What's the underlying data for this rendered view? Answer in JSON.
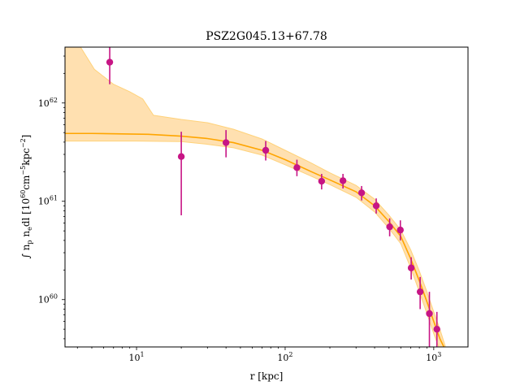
{
  "chart_data": {
    "type": "scatter",
    "title": "PSZ2G045.13+67.78",
    "xlabel": "r [kpc]",
    "ylabel": {
      "prefix": "∫ n",
      "sub1": "p",
      "mid": " n",
      "sub2": "e",
      "dl": "dl [10",
      "exp1": "60",
      "cm": "cm",
      "exp2": "−5",
      "kpc": "kpc",
      "exp3": "−2",
      "end": "]"
    },
    "xscale": "log",
    "yscale": "log",
    "xlim": [
      3.3,
      1700
    ],
    "ylim": [
      3.3e+59,
      3.7e+62
    ],
    "xticks": [
      {
        "value": 10,
        "base": "10",
        "exp": "1"
      },
      {
        "value": 100,
        "base": "10",
        "exp": "2"
      },
      {
        "value": 1000,
        "base": "10",
        "exp": "3"
      }
    ],
    "yticks": [
      {
        "value": 1e+60,
        "base": "10",
        "exp": "60"
      },
      {
        "value": 1e+61,
        "base": "10",
        "exp": "61"
      },
      {
        "value": 1e+62,
        "base": "10",
        "exp": "62"
      }
    ],
    "colors": {
      "data": "#c71585",
      "model": "#ffa500",
      "band": "#ffe0b0",
      "band_edge": "#ffd27a"
    },
    "points": [
      {
        "x": 6.6,
        "y": 2.6e+62,
        "ylo": 1.55e+62,
        "yhi": 3.7e+62
      },
      {
        "x": 20,
        "y": 2.85e+61,
        "ylo": 7.2e+60,
        "yhi": 5.1e+61
      },
      {
        "x": 40,
        "y": 3.95e+61,
        "ylo": 2.8e+61,
        "yhi": 5.3e+61
      },
      {
        "x": 74,
        "y": 3.3e+61,
        "ylo": 2.6e+61,
        "yhi": 4.1e+61
      },
      {
        "x": 120,
        "y": 2.2e+61,
        "ylo": 1.8e+61,
        "yhi": 2.65e+61
      },
      {
        "x": 176,
        "y": 1.6e+61,
        "ylo": 1.32e+61,
        "yhi": 1.9e+61
      },
      {
        "x": 245,
        "y": 1.62e+61,
        "ylo": 1.35e+61,
        "yhi": 1.9e+61
      },
      {
        "x": 327,
        "y": 1.22e+61,
        "ylo": 1.02e+61,
        "yhi": 1.43e+61
      },
      {
        "x": 410,
        "y": 9e+60,
        "ylo": 7.5e+60,
        "yhi": 1.07e+61
      },
      {
        "x": 505,
        "y": 5.5e+60,
        "ylo": 4.4e+60,
        "yhi": 6.7e+60
      },
      {
        "x": 596,
        "y": 5.1e+60,
        "ylo": 4e+60,
        "yhi": 6.4e+60
      },
      {
        "x": 705,
        "y": 2.1e+60,
        "ylo": 1.6e+60,
        "yhi": 2.7e+60
      },
      {
        "x": 810,
        "y": 1.2e+60,
        "ylo": 8e+59,
        "yhi": 1.7e+60
      },
      {
        "x": 935,
        "y": 7.2e+59,
        "ylo": 3.3e+59,
        "yhi": 1.2e+60
      },
      {
        "x": 1050,
        "y": 5e+59,
        "ylo": 3.3e+59,
        "yhi": 7.5e+59
      }
    ],
    "model_curve": [
      {
        "x": 3.3,
        "y": 4.9e+61
      },
      {
        "x": 5,
        "y": 4.9e+61
      },
      {
        "x": 8,
        "y": 4.85e+61
      },
      {
        "x": 12,
        "y": 4.8e+61
      },
      {
        "x": 20,
        "y": 4.6e+61
      },
      {
        "x": 30,
        "y": 4.35e+61
      },
      {
        "x": 45,
        "y": 3.95e+61
      },
      {
        "x": 70,
        "y": 3.3e+61
      },
      {
        "x": 100,
        "y": 2.65e+61
      },
      {
        "x": 150,
        "y": 2e+61
      },
      {
        "x": 200,
        "y": 1.65e+61
      },
      {
        "x": 300,
        "y": 1.25e+61
      },
      {
        "x": 400,
        "y": 9e+60
      },
      {
        "x": 500,
        "y": 6.2e+60
      },
      {
        "x": 600,
        "y": 4.4e+60
      },
      {
        "x": 700,
        "y": 2.6e+60
      },
      {
        "x": 800,
        "y": 1.55e+60
      },
      {
        "x": 900,
        "y": 9.5e+59
      },
      {
        "x": 1000,
        "y": 6e+59
      },
      {
        "x": 1100,
        "y": 4e+59
      },
      {
        "x": 1170,
        "y": 3.3e+59
      }
    ],
    "band_upper": [
      {
        "x": 3.3,
        "y": 3.7e+62
      },
      {
        "x": 4.2,
        "y": 3.7e+62
      },
      {
        "x": 5.2,
        "y": 2.2e+62
      },
      {
        "x": 7,
        "y": 1.55e+62
      },
      {
        "x": 9,
        "y": 1.3e+62
      },
      {
        "x": 11,
        "y": 1.1e+62
      },
      {
        "x": 13,
        "y": 7.5e+61
      },
      {
        "x": 20,
        "y": 6.8e+61
      },
      {
        "x": 30,
        "y": 6.3e+61
      },
      {
        "x": 45,
        "y": 5.4e+61
      },
      {
        "x": 70,
        "y": 4.3e+61
      },
      {
        "x": 100,
        "y": 3.3e+61
      },
      {
        "x": 150,
        "y": 2.45e+61
      },
      {
        "x": 200,
        "y": 1.95e+61
      },
      {
        "x": 300,
        "y": 1.45e+61
      },
      {
        "x": 400,
        "y": 1.05e+61
      },
      {
        "x": 500,
        "y": 7.2e+60
      },
      {
        "x": 600,
        "y": 5.1e+60
      },
      {
        "x": 700,
        "y": 3.2e+60
      },
      {
        "x": 800,
        "y": 1.95e+60
      },
      {
        "x": 900,
        "y": 1.2e+60
      },
      {
        "x": 1000,
        "y": 7.5e+59
      },
      {
        "x": 1100,
        "y": 5e+59
      },
      {
        "x": 1200,
        "y": 3.3e+59
      }
    ],
    "band_lower": [
      {
        "x": 3.3,
        "y": 4.1e+61
      },
      {
        "x": 10,
        "y": 4.1e+61
      },
      {
        "x": 20,
        "y": 4.05e+61
      },
      {
        "x": 30,
        "y": 3.8e+61
      },
      {
        "x": 45,
        "y": 3.5e+61
      },
      {
        "x": 70,
        "y": 2.95e+61
      },
      {
        "x": 100,
        "y": 2.35e+61
      },
      {
        "x": 150,
        "y": 1.8e+61
      },
      {
        "x": 200,
        "y": 1.48e+61
      },
      {
        "x": 300,
        "y": 1.1e+61
      },
      {
        "x": 400,
        "y": 7.8e+60
      },
      {
        "x": 500,
        "y": 5.3e+60
      },
      {
        "x": 600,
        "y": 3.7e+60
      },
      {
        "x": 700,
        "y": 2.1e+60
      },
      {
        "x": 800,
        "y": 1.2e+60
      },
      {
        "x": 900,
        "y": 7.2e+59
      },
      {
        "x": 1000,
        "y": 4.5e+59
      },
      {
        "x": 1080,
        "y": 3.3e+59
      }
    ]
  }
}
